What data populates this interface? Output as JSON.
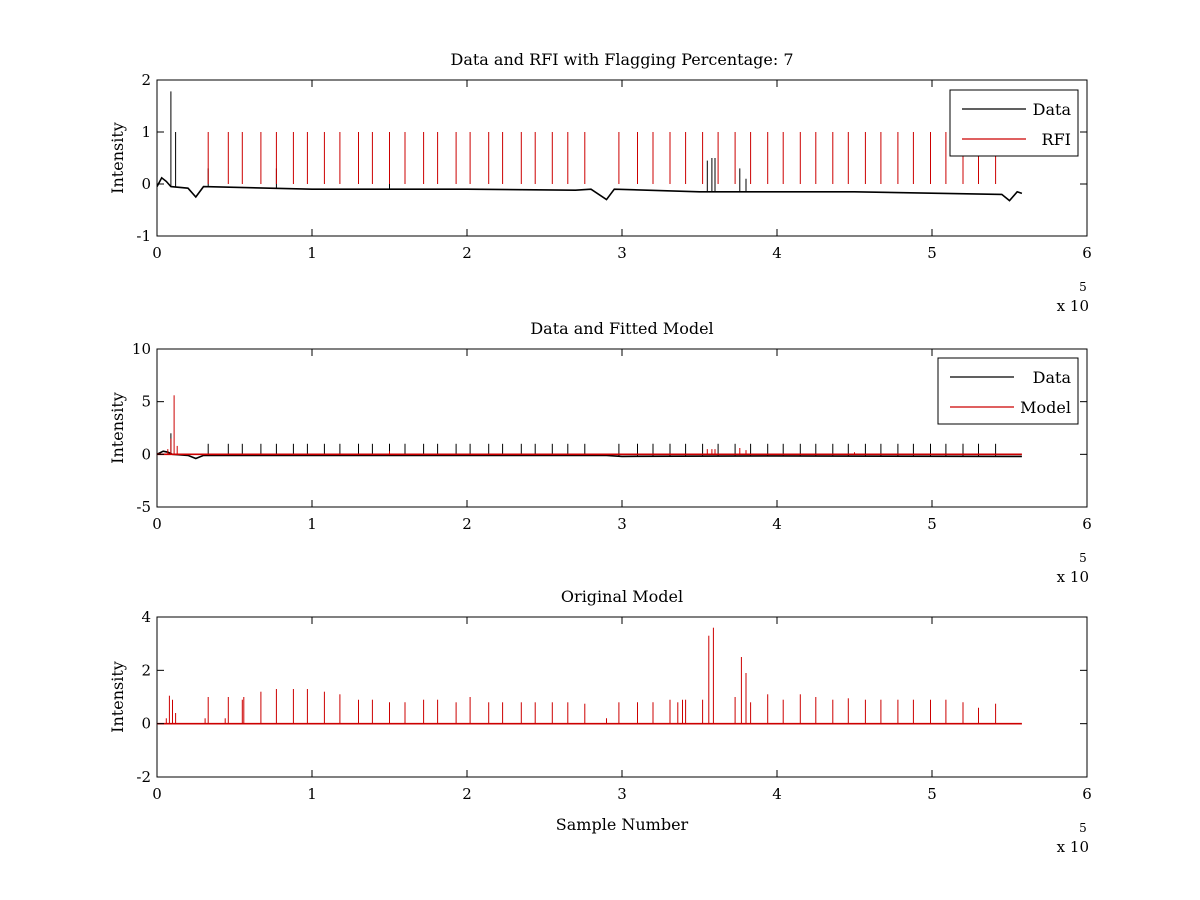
{
  "chart_data": [
    {
      "type": "line",
      "title": "Data and RFI with Flagging Percentage: 7",
      "xlabel": "",
      "ylabel": "Intensity",
      "xlim": [
        0,
        6
      ],
      "ylim": [
        -1,
        2
      ],
      "x_ticks": [
        "0",
        "1",
        "2",
        "3",
        "4",
        "5",
        "6"
      ],
      "y_ticks": [
        "-1",
        "0",
        "1",
        "2"
      ],
      "x_multiplier": "x 10",
      "x_multiplier_exp": "5",
      "legend": {
        "location": "top-right",
        "entries": [
          "Data",
          "RFI"
        ]
      },
      "series": [
        {
          "name": "Data",
          "color": "#000000",
          "baseline": [
            [
              0.0,
              -0.05
            ],
            [
              0.03,
              0.12
            ],
            [
              0.06,
              0.05
            ],
            [
              0.09,
              -0.05
            ],
            [
              0.2,
              -0.08
            ],
            [
              0.25,
              -0.25
            ],
            [
              0.3,
              -0.05
            ],
            [
              1.0,
              -0.1
            ],
            [
              2.0,
              -0.1
            ],
            [
              2.7,
              -0.12
            ],
            [
              2.8,
              -0.1
            ],
            [
              2.9,
              -0.3
            ],
            [
              2.95,
              -0.1
            ],
            [
              3.5,
              -0.15
            ],
            [
              4.5,
              -0.15
            ],
            [
              5.45,
              -0.2
            ],
            [
              5.5,
              -0.32
            ],
            [
              5.55,
              -0.15
            ],
            [
              5.58,
              -0.18
            ]
          ],
          "spikes": [
            [
              0.09,
              1.78
            ],
            [
              0.12,
              1.0
            ],
            [
              0.33,
              0.3
            ],
            [
              0.77,
              0.3
            ],
            [
              1.5,
              0.3
            ],
            [
              3.55,
              0.45
            ],
            [
              3.58,
              0.5
            ],
            [
              3.6,
              0.5
            ],
            [
              3.76,
              0.3
            ],
            [
              3.8,
              0.1
            ]
          ]
        },
        {
          "name": "RFI",
          "color": "#cc0000",
          "spikes": [
            [
              0.33,
              1.0
            ],
            [
              0.46,
              1.0
            ],
            [
              0.55,
              1.0
            ],
            [
              0.67,
              1.0
            ],
            [
              0.77,
              1.0
            ],
            [
              0.88,
              1.0
            ],
            [
              0.97,
              1.0
            ],
            [
              1.08,
              1.0
            ],
            [
              1.18,
              1.0
            ],
            [
              1.3,
              1.0
            ],
            [
              1.39,
              1.0
            ],
            [
              1.5,
              1.0
            ],
            [
              1.6,
              1.0
            ],
            [
              1.72,
              1.0
            ],
            [
              1.81,
              1.0
            ],
            [
              1.93,
              1.0
            ],
            [
              2.02,
              1.0
            ],
            [
              2.14,
              1.0
            ],
            [
              2.23,
              1.0
            ],
            [
              2.35,
              1.0
            ],
            [
              2.44,
              1.0
            ],
            [
              2.55,
              1.0
            ],
            [
              2.65,
              1.0
            ],
            [
              2.76,
              1.0
            ],
            [
              2.98,
              1.0
            ],
            [
              3.1,
              1.0
            ],
            [
              3.2,
              1.0
            ],
            [
              3.31,
              1.0
            ],
            [
              3.41,
              1.0
            ],
            [
              3.52,
              1.0
            ],
            [
              3.62,
              1.0
            ],
            [
              3.73,
              1.0
            ],
            [
              3.83,
              1.0
            ],
            [
              3.94,
              1.0
            ],
            [
              4.04,
              1.0
            ],
            [
              4.15,
              1.0
            ],
            [
              4.25,
              1.0
            ],
            [
              4.36,
              1.0
            ],
            [
              4.46,
              1.0
            ],
            [
              4.57,
              1.0
            ],
            [
              4.67,
              1.0
            ],
            [
              4.78,
              1.0
            ],
            [
              4.88,
              1.0
            ],
            [
              4.99,
              1.0
            ],
            [
              5.09,
              1.0
            ],
            [
              5.2,
              1.0
            ],
            [
              5.3,
              1.0
            ],
            [
              5.41,
              1.0
            ]
          ]
        }
      ]
    },
    {
      "type": "line",
      "title": "Data and Fitted Model",
      "xlabel": "",
      "ylabel": "Intensity",
      "xlim": [
        0,
        6
      ],
      "ylim": [
        -5,
        10
      ],
      "x_ticks": [
        "0",
        "1",
        "2",
        "3",
        "4",
        "5",
        "6"
      ],
      "y_ticks": [
        "-5",
        "0",
        "5",
        "10"
      ],
      "x_multiplier": "x 10",
      "x_multiplier_exp": "5",
      "legend": {
        "location": "top-right",
        "entries": [
          "Data",
          "Model"
        ]
      },
      "series": [
        {
          "name": "Data",
          "color": "#000000",
          "baseline": [
            [
              0.0,
              0.0
            ],
            [
              0.04,
              0.3
            ],
            [
              0.07,
              0.2
            ],
            [
              0.1,
              0.0
            ],
            [
              0.2,
              -0.1
            ],
            [
              0.25,
              -0.4
            ],
            [
              0.3,
              -0.1
            ],
            [
              1.0,
              -0.1
            ],
            [
              2.9,
              -0.1
            ],
            [
              3.0,
              -0.2
            ],
            [
              4.0,
              -0.15
            ],
            [
              5.5,
              -0.2
            ],
            [
              5.58,
              -0.2
            ]
          ],
          "spikes": [
            [
              0.09,
              2.0
            ],
            [
              0.33,
              1.0
            ],
            [
              0.46,
              1.0
            ],
            [
              0.55,
              1.0
            ],
            [
              0.67,
              1.0
            ],
            [
              0.77,
              1.0
            ],
            [
              0.88,
              1.0
            ],
            [
              0.97,
              1.0
            ],
            [
              1.08,
              1.0
            ],
            [
              1.18,
              1.0
            ],
            [
              1.3,
              1.0
            ],
            [
              1.39,
              1.0
            ],
            [
              1.5,
              1.0
            ],
            [
              1.6,
              1.0
            ],
            [
              1.72,
              1.0
            ],
            [
              1.81,
              1.0
            ],
            [
              1.93,
              1.0
            ],
            [
              2.02,
              1.0
            ],
            [
              2.14,
              1.0
            ],
            [
              2.23,
              1.0
            ],
            [
              2.35,
              1.0
            ],
            [
              2.44,
              1.0
            ],
            [
              2.55,
              1.0
            ],
            [
              2.65,
              1.0
            ],
            [
              2.76,
              1.0
            ],
            [
              2.98,
              1.0
            ],
            [
              3.1,
              1.0
            ],
            [
              3.2,
              1.0
            ],
            [
              3.31,
              1.0
            ],
            [
              3.41,
              1.0
            ],
            [
              3.52,
              1.0
            ],
            [
              3.62,
              1.0
            ],
            [
              3.73,
              1.0
            ],
            [
              3.83,
              1.0
            ],
            [
              3.94,
              1.0
            ],
            [
              4.04,
              1.0
            ],
            [
              4.15,
              1.0
            ],
            [
              4.25,
              1.0
            ],
            [
              4.36,
              1.0
            ],
            [
              4.46,
              1.0
            ],
            [
              4.57,
              1.0
            ],
            [
              4.67,
              1.0
            ],
            [
              4.78,
              1.0
            ],
            [
              4.88,
              1.0
            ],
            [
              4.99,
              1.0
            ],
            [
              5.09,
              1.0
            ],
            [
              5.2,
              1.0
            ],
            [
              5.3,
              1.0
            ],
            [
              5.41,
              1.0
            ]
          ]
        },
        {
          "name": "Model",
          "color": "#cc0000",
          "baseline": [
            [
              0.0,
              0.0
            ],
            [
              5.58,
              0.0
            ]
          ],
          "spikes": [
            [
              0.07,
              0.5
            ],
            [
              0.09,
              1.5
            ],
            [
              0.11,
              5.6
            ],
            [
              0.13,
              0.8
            ],
            [
              1.5,
              0.3
            ],
            [
              3.55,
              0.5
            ],
            [
              3.58,
              0.5
            ],
            [
              3.6,
              0.5
            ],
            [
              3.76,
              0.6
            ],
            [
              3.8,
              0.4
            ],
            [
              4.5,
              0.2
            ]
          ]
        }
      ]
    },
    {
      "type": "line",
      "title": "Original Model",
      "xlabel": "Sample Number",
      "ylabel": "Intensity",
      "xlim": [
        0,
        6
      ],
      "ylim": [
        -2,
        4
      ],
      "x_ticks": [
        "0",
        "1",
        "2",
        "3",
        "4",
        "5",
        "6"
      ],
      "y_ticks": [
        "-2",
        "0",
        "2",
        "4"
      ],
      "x_multiplier": "x 10",
      "x_multiplier_exp": "5",
      "series": [
        {
          "name": "",
          "color": "#cc0000",
          "baseline": [
            [
              0.0,
              0.0
            ],
            [
              5.58,
              0.0
            ]
          ],
          "spikes": [
            [
              0.06,
              0.2
            ],
            [
              0.08,
              1.05
            ],
            [
              0.1,
              0.9
            ],
            [
              0.12,
              0.4
            ],
            [
              0.31,
              0.2
            ],
            [
              0.33,
              1.0
            ],
            [
              0.44,
              0.2
            ],
            [
              0.46,
              1.0
            ],
            [
              0.55,
              0.9
            ],
            [
              0.56,
              1.0
            ],
            [
              0.67,
              1.2
            ],
            [
              0.77,
              1.3
            ],
            [
              0.88,
              1.3
            ],
            [
              0.97,
              1.3
            ],
            [
              1.08,
              1.2
            ],
            [
              1.18,
              1.1
            ],
            [
              1.3,
              0.9
            ],
            [
              1.39,
              0.9
            ],
            [
              1.5,
              0.8
            ],
            [
              1.6,
              0.8
            ],
            [
              1.72,
              0.9
            ],
            [
              1.81,
              0.9
            ],
            [
              1.93,
              0.8
            ],
            [
              2.02,
              1.0
            ],
            [
              2.14,
              0.8
            ],
            [
              2.23,
              0.8
            ],
            [
              2.35,
              0.8
            ],
            [
              2.44,
              0.8
            ],
            [
              2.55,
              0.8
            ],
            [
              2.65,
              0.8
            ],
            [
              2.76,
              0.75
            ],
            [
              2.9,
              0.2
            ],
            [
              2.98,
              0.8
            ],
            [
              3.1,
              0.8
            ],
            [
              3.2,
              0.8
            ],
            [
              3.31,
              0.9
            ],
            [
              3.36,
              0.8
            ],
            [
              3.39,
              0.9
            ],
            [
              3.41,
              0.9
            ],
            [
              3.52,
              0.9
            ],
            [
              3.56,
              3.3
            ],
            [
              3.59,
              3.6
            ],
            [
              3.73,
              1.0
            ],
            [
              3.77,
              2.5
            ],
            [
              3.8,
              1.9
            ],
            [
              3.83,
              0.8
            ],
            [
              3.94,
              1.1
            ],
            [
              4.04,
              0.9
            ],
            [
              4.15,
              1.1
            ],
            [
              4.25,
              1.0
            ],
            [
              4.36,
              0.9
            ],
            [
              4.46,
              0.95
            ],
            [
              4.57,
              0.9
            ],
            [
              4.67,
              0.9
            ],
            [
              4.78,
              0.9
            ],
            [
              4.88,
              0.9
            ],
            [
              4.99,
              0.9
            ],
            [
              5.09,
              0.9
            ],
            [
              5.2,
              0.8
            ],
            [
              5.3,
              0.6
            ],
            [
              5.41,
              0.75
            ]
          ]
        }
      ]
    }
  ]
}
